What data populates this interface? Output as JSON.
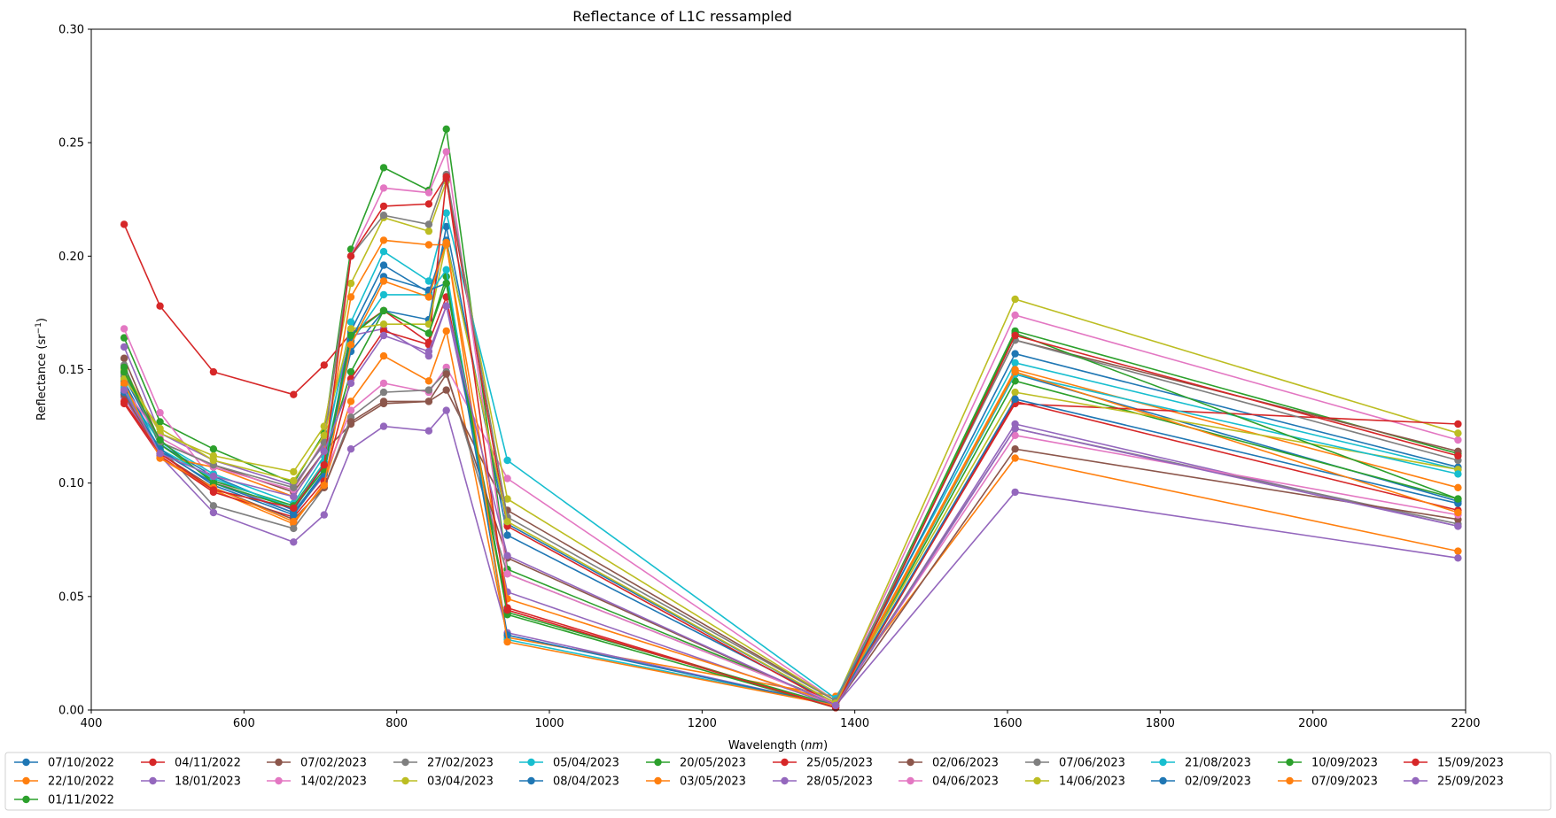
{
  "chart_data": {
    "type": "line",
    "title": "Reflectance of L1C ressampled",
    "xlabel": "Wavelength (nm)",
    "xlabel_prefix": "Wavelength (",
    "xlabel_unit": "nm",
    "xlabel_suffix": ")",
    "ylabel": "Reflectance (sr−1)",
    "ylabel_prefix": "Reflectance (sr",
    "ylabel_sup": "−1",
    "ylabel_suffix": ")",
    "xlim": [
      400,
      2200
    ],
    "ylim": [
      0,
      0.3
    ],
    "xticks": [
      400,
      600,
      800,
      1000,
      1200,
      1400,
      1600,
      1800,
      2000,
      2200
    ],
    "xtick_labels": [
      "400",
      "600",
      "800",
      "1000",
      "1200",
      "1400",
      "1600",
      "1800",
      "2000",
      "2200"
    ],
    "yticks": [
      0,
      0.05,
      0.1,
      0.15,
      0.2,
      0.25,
      0.3
    ],
    "ytick_labels": [
      "0.00",
      "0.05",
      "0.10",
      "0.15",
      "0.20",
      "0.25",
      "0.30"
    ],
    "grid": false,
    "legend_position": "bottom",
    "x": [
      443,
      490,
      560,
      665,
      705,
      740,
      783,
      842,
      865,
      945,
      1375,
      1610,
      2190
    ],
    "series": [
      {
        "name": "07/10/2022",
        "color": "#1f77b4",
        "values": [
          0.147,
          0.117,
          0.103,
          0.088,
          0.108,
          0.158,
          0.176,
          0.172,
          0.213,
          0.077,
          0.003,
          0.148,
          0.092
        ]
      },
      {
        "name": "22/10/2022",
        "color": "#ff7f0e",
        "values": [
          0.144,
          0.111,
          0.097,
          0.082,
          0.1,
          0.136,
          0.156,
          0.145,
          0.167,
          0.032,
          0.006,
          0.111,
          0.07
        ]
      },
      {
        "name": "01/11/2022",
        "color": "#2ca02c",
        "values": [
          0.164,
          0.127,
          0.115,
          0.1,
          0.122,
          0.203,
          0.239,
          0.229,
          0.256,
          0.062,
          0.003,
          0.167,
          0.113
        ]
      },
      {
        "name": "04/11/2022",
        "color": "#d62728",
        "values": [
          0.214,
          0.178,
          0.149,
          0.139,
          0.152,
          0.166,
          0.176,
          0.162,
          0.182,
          0.045,
          0.001,
          0.136,
          0.088
        ]
      },
      {
        "name": "18/01/2023",
        "color": "#9467bd",
        "values": [
          0.16,
          0.122,
          0.11,
          0.099,
          0.117,
          0.165,
          0.168,
          0.156,
          0.178,
          0.052,
          0.002,
          0.126,
          0.081
        ]
      },
      {
        "name": "07/02/2023",
        "color": "#8c564b",
        "values": [
          0.155,
          0.118,
          0.108,
          0.096,
          0.114,
          0.126,
          0.135,
          0.136,
          0.141,
          0.088,
          0.004,
          0.163,
          0.114
        ]
      },
      {
        "name": "14/02/2023",
        "color": "#e377c2",
        "values": [
          0.168,
          0.131,
          0.101,
          0.087,
          0.103,
          0.132,
          0.144,
          0.14,
          0.151,
          0.102,
          0.004,
          0.174,
          0.119
        ]
      },
      {
        "name": "27/02/2023",
        "color": "#7f7f7f",
        "values": [
          0.152,
          0.116,
          0.09,
          0.08,
          0.098,
          0.129,
          0.14,
          0.141,
          0.149,
          0.06,
          0.003,
          0.124,
          0.082
        ]
      },
      {
        "name": "03/04/2023",
        "color": "#bcbd22",
        "values": [
          0.15,
          0.122,
          0.112,
          0.105,
          0.125,
          0.188,
          0.217,
          0.211,
          0.233,
          0.093,
          0.004,
          0.181,
          0.122
        ]
      },
      {
        "name": "05/04/2023",
        "color": "#17becf",
        "values": [
          0.141,
          0.118,
          0.104,
          0.091,
          0.112,
          0.171,
          0.202,
          0.189,
          0.219,
          0.11,
          0.005,
          0.153,
          0.106
        ]
      },
      {
        "name": "08/04/2023",
        "color": "#1f77b4",
        "values": [
          0.145,
          0.114,
          0.1,
          0.087,
          0.105,
          0.167,
          0.196,
          0.184,
          0.207,
          0.082,
          0.003,
          0.157,
          0.107
        ]
      },
      {
        "name": "20/05/2023",
        "color": "#2ca02c",
        "values": [
          0.151,
          0.117,
          0.101,
          0.09,
          0.109,
          0.149,
          0.176,
          0.166,
          0.191,
          0.043,
          0.002,
          0.145,
          0.093
        ]
      },
      {
        "name": "03/05/2023",
        "color": "#ff7f0e",
        "values": [
          0.143,
          0.112,
          0.107,
          0.094,
          0.114,
          0.182,
          0.207,
          0.205,
          0.205,
          0.049,
          0.003,
          0.15,
          0.098
        ]
      },
      {
        "name": "25/05/2023",
        "color": "#d62728",
        "values": [
          0.135,
          0.112,
          0.096,
          0.085,
          0.101,
          0.146,
          0.167,
          0.161,
          0.234,
          0.081,
          0.002,
          0.135,
          0.126
        ]
      },
      {
        "name": "28/05/2023",
        "color": "#9467bd",
        "values": [
          0.138,
          0.112,
          0.087,
          0.074,
          0.086,
          0.115,
          0.125,
          0.123,
          0.132,
          0.034,
          0.002,
          0.096,
          0.067
        ]
      },
      {
        "name": "02/06/2023",
        "color": "#8c564b",
        "values": [
          0.139,
          0.113,
          0.098,
          0.084,
          0.098,
          0.127,
          0.136,
          0.136,
          0.148,
          0.067,
          0.002,
          0.115,
          0.084
        ]
      },
      {
        "name": "04/06/2023",
        "color": "#e377c2",
        "values": [
          0.142,
          0.12,
          0.107,
          0.097,
          0.119,
          0.2,
          0.23,
          0.228,
          0.246,
          0.06,
          0.003,
          0.121,
          0.086
        ]
      },
      {
        "name": "07/06/2023",
        "color": "#7f7f7f",
        "values": [
          0.148,
          0.118,
          0.108,
          0.098,
          0.118,
          0.2,
          0.218,
          0.214,
          0.236,
          0.085,
          0.004,
          0.163,
          0.11
        ]
      },
      {
        "name": "14/06/2023",
        "color": "#bcbd22",
        "values": [
          0.146,
          0.124,
          0.11,
          0.101,
          0.121,
          0.168,
          0.17,
          0.17,
          0.206,
          0.083,
          0.003,
          0.14,
          0.106
        ]
      },
      {
        "name": "21/08/2023",
        "color": "#17becf",
        "values": [
          0.142,
          0.115,
          0.102,
          0.089,
          0.109,
          0.162,
          0.183,
          0.183,
          0.194,
          0.031,
          0.002,
          0.148,
          0.104
        ]
      },
      {
        "name": "02/09/2023",
        "color": "#1f77b4",
        "values": [
          0.14,
          0.115,
          0.099,
          0.086,
          0.104,
          0.163,
          0.191,
          0.185,
          0.188,
          0.033,
          0.002,
          0.137,
          0.091
        ]
      },
      {
        "name": "10/09/2023",
        "color": "#2ca02c",
        "values": [
          0.149,
          0.119,
          0.1,
          0.089,
          0.106,
          0.165,
          0.176,
          0.166,
          0.188,
          0.042,
          0.001,
          0.166,
          0.093
        ]
      },
      {
        "name": "07/09/2023",
        "color": "#ff7f0e",
        "values": [
          0.144,
          0.111,
          0.098,
          0.083,
          0.099,
          0.161,
          0.189,
          0.182,
          0.206,
          0.03,
          0.002,
          0.149,
          0.087
        ]
      },
      {
        "name": "15/09/2023",
        "color": "#d62728",
        "values": [
          0.136,
          0.113,
          0.097,
          0.089,
          0.108,
          0.2,
          0.222,
          0.223,
          0.235,
          0.044,
          0.001,
          0.165,
          0.112
        ]
      },
      {
        "name": "25/09/2023",
        "color": "#9467bd",
        "values": [
          0.141,
          0.113,
          0.103,
          0.094,
          0.114,
          0.144,
          0.165,
          0.158,
          0.178,
          0.068,
          0.002,
          0.124,
          0.081
        ]
      }
    ]
  }
}
